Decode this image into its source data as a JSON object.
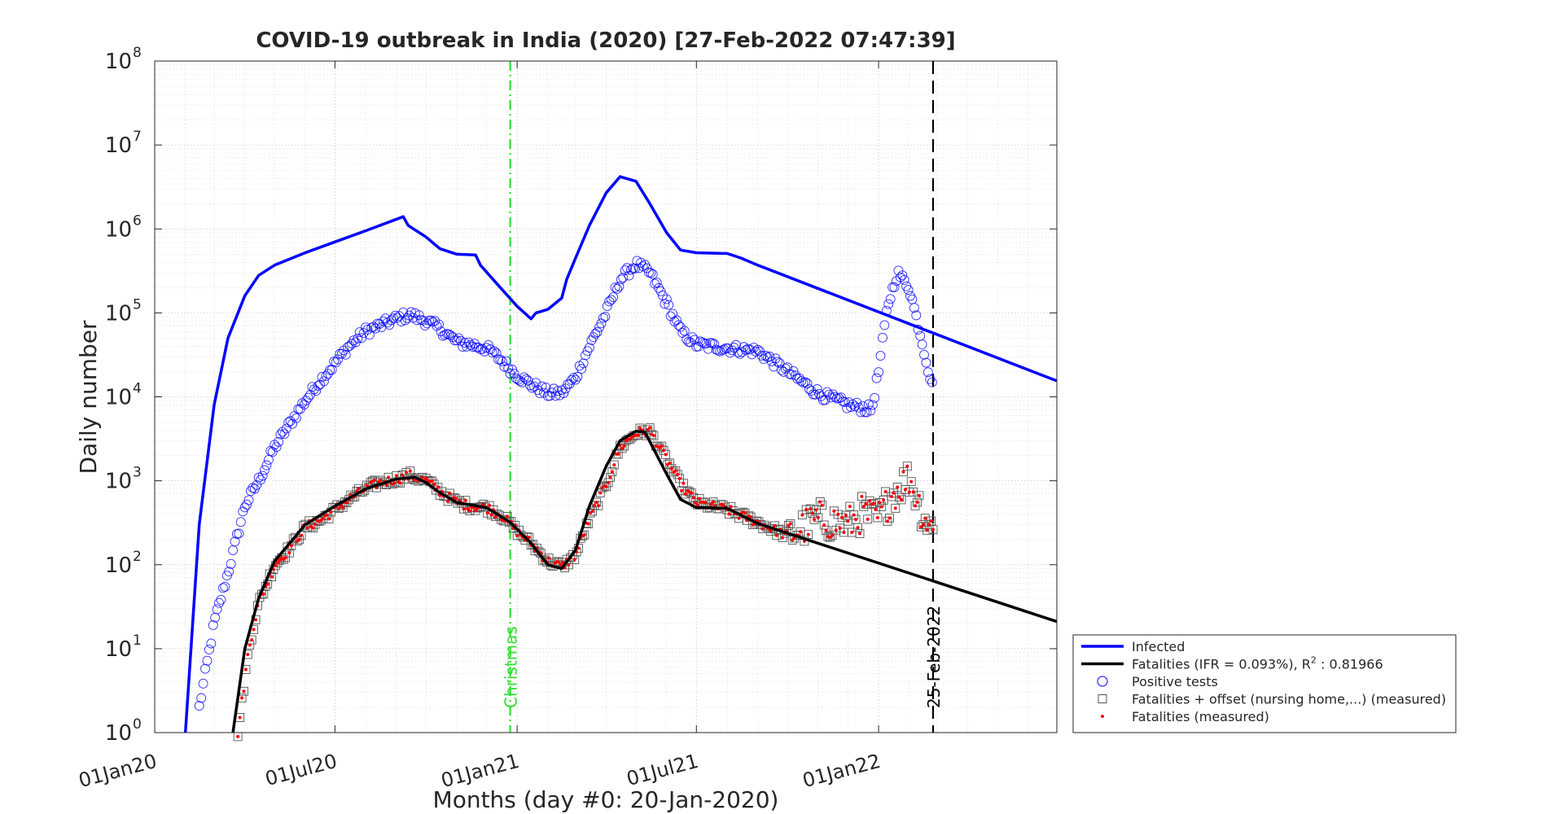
{
  "chart_data": {
    "type": "line",
    "title": "COVID-19 outbreak in India (2020) [27-Feb-2022 07:47:39]",
    "xlabel": "Months (day #0: 20-Jan-2020)",
    "ylabel": "Daily number",
    "yscale": "log",
    "ylim": [
      1,
      100000000
    ],
    "xlim": [
      "2020-01-01",
      "2022-06-30"
    ],
    "grid": true,
    "x_ticks": [
      {
        "date": "2020-01-01",
        "label": "01Jan20"
      },
      {
        "date": "2020-07-01",
        "label": "01Jul20"
      },
      {
        "date": "2021-01-01",
        "label": "01Jan21"
      },
      {
        "date": "2021-07-01",
        "label": "01Jul21"
      },
      {
        "date": "2022-01-01",
        "label": "01Jan22"
      }
    ],
    "y_ticks": [
      {
        "value": 1,
        "base": "10",
        "exp": "0"
      },
      {
        "value": 10,
        "base": "10",
        "exp": "1"
      },
      {
        "value": 100,
        "base": "10",
        "exp": "2"
      },
      {
        "value": 1000,
        "base": "10",
        "exp": "3"
      },
      {
        "value": 10000,
        "base": "10",
        "exp": "4"
      },
      {
        "value": 100000,
        "base": "10",
        "exp": "5"
      },
      {
        "value": 1000000,
        "base": "10",
        "exp": "6"
      },
      {
        "value": 10000000,
        "base": "10",
        "exp": "7"
      },
      {
        "value": 100000000,
        "base": "10",
        "exp": "8"
      }
    ],
    "vlines": [
      {
        "date": "2020-12-25",
        "label": "Christmas",
        "color": "#33dd33",
        "style": "dashdot"
      },
      {
        "date": "2022-02-25",
        "label": "25-Feb-2022",
        "color": "#000000",
        "style": "dashed"
      }
    ],
    "legend": {
      "position": "bottom-right-outside",
      "entries": [
        {
          "label": "Infected",
          "kind": "line",
          "color": "#0000ff"
        },
        {
          "label": "Fatalities (IFR = 0.093%), R",
          "sup": "2",
          "suffix": " : 0.81966",
          "kind": "line",
          "color": "#000000"
        },
        {
          "label": "Positive tests",
          "kind": "circle",
          "color": "#0000ff"
        },
        {
          "label": "Fatalities + offset (nursing home,...) (measured)",
          "kind": "square",
          "color": "#000000"
        },
        {
          "label": "Fatalities (measured)",
          "kind": "dot",
          "color": "#ff0000"
        }
      ]
    },
    "series": [
      {
        "name": "Infected",
        "role": "infected",
        "color": "#0000ff",
        "points": [
          [
            "2020-02-01",
            1
          ],
          [
            "2020-02-15",
            300
          ],
          [
            "2020-03-01",
            8000
          ],
          [
            "2020-03-15",
            50000
          ],
          [
            "2020-04-01",
            160000
          ],
          [
            "2020-04-15",
            280000
          ],
          [
            "2020-05-01",
            370000
          ],
          [
            "2020-06-01",
            520000
          ],
          [
            "2020-07-01",
            700000
          ],
          [
            "2020-08-01",
            950000
          ],
          [
            "2020-09-08",
            1400000
          ],
          [
            "2020-09-13",
            1100000
          ],
          [
            "2020-10-01",
            800000
          ],
          [
            "2020-10-15",
            580000
          ],
          [
            "2020-11-01",
            500000
          ],
          [
            "2020-11-20",
            490000
          ],
          [
            "2020-11-25",
            370000
          ],
          [
            "2020-12-15",
            200000
          ],
          [
            "2021-01-01",
            120000
          ],
          [
            "2021-01-15",
            85000
          ],
          [
            "2021-01-20",
            100000
          ],
          [
            "2021-02-01",
            110000
          ],
          [
            "2021-02-15",
            150000
          ],
          [
            "2021-02-20",
            250000
          ],
          [
            "2021-03-01",
            450000
          ],
          [
            "2021-03-15",
            1100000
          ],
          [
            "2021-04-01",
            2700000
          ],
          [
            "2021-04-15",
            4200000
          ],
          [
            "2021-05-01",
            3700000
          ],
          [
            "2021-05-15",
            2000000
          ],
          [
            "2021-06-01",
            900000
          ],
          [
            "2021-06-15",
            560000
          ],
          [
            "2021-07-01",
            520000
          ],
          [
            "2021-08-01",
            510000
          ],
          [
            "2021-08-15",
            450000
          ],
          [
            "2021-09-01",
            370000
          ],
          [
            "2022-06-30",
            15500
          ]
        ]
      },
      {
        "name": "Fatalities (IFR = 0.093%), R² : 0.81966",
        "role": "fatalities_fit",
        "color": "#000000",
        "points": [
          [
            "2020-03-20",
            1
          ],
          [
            "2020-04-01",
            10
          ],
          [
            "2020-04-15",
            40
          ],
          [
            "2020-05-01",
            110
          ],
          [
            "2020-06-01",
            300
          ],
          [
            "2020-07-01",
            500
          ],
          [
            "2020-08-01",
            800
          ],
          [
            "2020-09-01",
            1050
          ],
          [
            "2020-09-20",
            1100
          ],
          [
            "2020-10-01",
            950
          ],
          [
            "2020-10-15",
            720
          ],
          [
            "2020-11-01",
            550
          ],
          [
            "2020-12-01",
            480
          ],
          [
            "2020-12-25",
            320
          ],
          [
            "2021-01-15",
            180
          ],
          [
            "2021-02-01",
            100
          ],
          [
            "2021-02-15",
            90
          ],
          [
            "2021-03-01",
            150
          ],
          [
            "2021-03-15",
            500
          ],
          [
            "2021-04-01",
            1500
          ],
          [
            "2021-04-15",
            3000
          ],
          [
            "2021-05-01",
            3900
          ],
          [
            "2021-05-10",
            3800
          ],
          [
            "2021-06-01",
            1200
          ],
          [
            "2021-06-15",
            600
          ],
          [
            "2021-07-01",
            480
          ],
          [
            "2021-08-01",
            470
          ],
          [
            "2021-09-01",
            310
          ],
          [
            "2022-06-30",
            21
          ]
        ]
      },
      {
        "name": "Positive tests",
        "role": "positive_tests",
        "color": "#0000ff",
        "points": [
          [
            "2020-02-15",
            2
          ],
          [
            "2020-03-01",
            20
          ],
          [
            "2020-03-15",
            80
          ],
          [
            "2020-04-01",
            500
          ],
          [
            "2020-04-15",
            1000
          ],
          [
            "2020-05-01",
            2500
          ],
          [
            "2020-05-15",
            4500
          ],
          [
            "2020-06-01",
            9000
          ],
          [
            "2020-06-15",
            15000
          ],
          [
            "2020-07-01",
            25000
          ],
          [
            "2020-07-15",
            40000
          ],
          [
            "2020-08-01",
            60000
          ],
          [
            "2020-08-15",
            70000
          ],
          [
            "2020-09-01",
            85000
          ],
          [
            "2020-09-15",
            95000
          ],
          [
            "2020-10-01",
            80000
          ],
          [
            "2020-10-15",
            65000
          ],
          [
            "2020-11-01",
            45000
          ],
          [
            "2020-11-15",
            42000
          ],
          [
            "2020-12-01",
            38000
          ],
          [
            "2020-12-15",
            28000
          ],
          [
            "2021-01-01",
            18000
          ],
          [
            "2021-01-15",
            14000
          ],
          [
            "2021-02-01",
            11000
          ],
          [
            "2021-02-15",
            11000
          ],
          [
            "2021-03-01",
            17000
          ],
          [
            "2021-03-15",
            40000
          ],
          [
            "2021-04-01",
            100000
          ],
          [
            "2021-04-15",
            250000
          ],
          [
            "2021-05-01",
            380000
          ],
          [
            "2021-05-15",
            300000
          ],
          [
            "2021-06-01",
            130000
          ],
          [
            "2021-06-15",
            60000
          ],
          [
            "2021-07-01",
            42000
          ],
          [
            "2021-08-01",
            38000
          ],
          [
            "2021-09-01",
            35000
          ],
          [
            "2021-10-01",
            20000
          ],
          [
            "2021-11-01",
            11000
          ],
          [
            "2021-12-01",
            8000
          ],
          [
            "2021-12-25",
            7000
          ],
          [
            "2022-01-01",
            20000
          ],
          [
            "2022-01-10",
            120000
          ],
          [
            "2022-01-20",
            300000
          ],
          [
            "2022-02-01",
            200000
          ],
          [
            "2022-02-15",
            40000
          ],
          [
            "2022-02-25",
            12000
          ]
        ]
      },
      {
        "name": "Fatalities (measured)",
        "role": "fatalities_measured",
        "color": "#ff0000",
        "points": [
          [
            "2020-03-25",
            1
          ],
          [
            "2020-04-05",
            10
          ],
          [
            "2020-04-15",
            35
          ],
          [
            "2020-05-01",
            100
          ],
          [
            "2020-05-15",
            150
          ],
          [
            "2020-06-01",
            280
          ],
          [
            "2020-06-15",
            330
          ],
          [
            "2020-07-01",
            450
          ],
          [
            "2020-07-15",
            600
          ],
          [
            "2020-08-01",
            800
          ],
          [
            "2020-08-15",
            950
          ],
          [
            "2020-09-01",
            1050
          ],
          [
            "2020-09-15",
            1150
          ],
          [
            "2020-10-01",
            1000
          ],
          [
            "2020-10-15",
            750
          ],
          [
            "2020-11-01",
            550
          ],
          [
            "2020-11-15",
            500
          ],
          [
            "2020-12-01",
            480
          ],
          [
            "2020-12-15",
            400
          ],
          [
            "2021-01-01",
            250
          ],
          [
            "2021-01-15",
            180
          ],
          [
            "2021-02-01",
            110
          ],
          [
            "2021-02-15",
            95
          ],
          [
            "2021-03-01",
            130
          ],
          [
            "2021-03-15",
            350
          ],
          [
            "2021-04-01",
            900
          ],
          [
            "2021-04-15",
            2500
          ],
          [
            "2021-05-01",
            3700
          ],
          [
            "2021-05-15",
            3900
          ],
          [
            "2021-06-01",
            1800
          ],
          [
            "2021-06-15",
            900
          ],
          [
            "2021-07-01",
            550
          ],
          [
            "2021-08-01",
            450
          ],
          [
            "2021-09-01",
            320
          ],
          [
            "2021-10-01",
            220
          ],
          [
            "2021-11-01",
            350
          ],
          [
            "2021-12-01",
            300
          ],
          [
            "2021-12-15",
            400
          ],
          [
            "2022-01-01",
            350
          ],
          [
            "2022-01-15",
            700
          ],
          [
            "2022-02-01",
            1100
          ],
          [
            "2022-02-15",
            400
          ],
          [
            "2022-02-25",
            250
          ]
        ]
      }
    ]
  }
}
